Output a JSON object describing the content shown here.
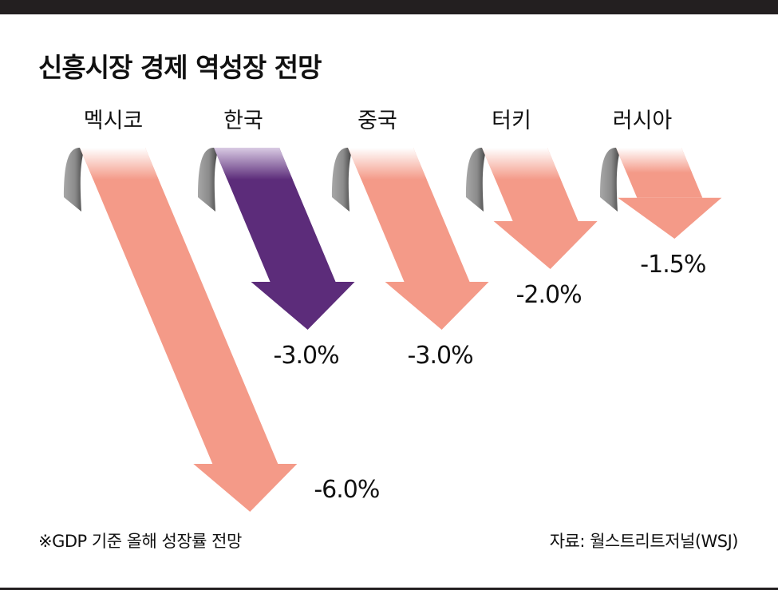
{
  "title": "신흥시장 경제 역성장 전망",
  "note": "※GDP 기준 올해 성장률 전망",
  "source": "자료: 월스트리트저널(WSJ)",
  "colors": {
    "arrow_default": "#f49a88",
    "arrow_highlight": "#5c2c7a",
    "text": "#111111",
    "bar": "#231f20"
  },
  "chart_data": {
    "type": "bar",
    "title": "신흥시장 경제 역성장 전망",
    "xlabel": "",
    "ylabel": "",
    "categories": [
      "멕시코",
      "한국",
      "중국",
      "터키",
      "러시아"
    ],
    "values": [
      -6.0,
      -3.0,
      -3.0,
      -2.0,
      -1.5
    ],
    "value_labels": [
      "-6.0%",
      "-3.0%",
      "-3.0%",
      "-2.0%",
      "-1.5%"
    ],
    "unit": "%",
    "highlight": "한국",
    "grid": false,
    "legend": "none"
  }
}
